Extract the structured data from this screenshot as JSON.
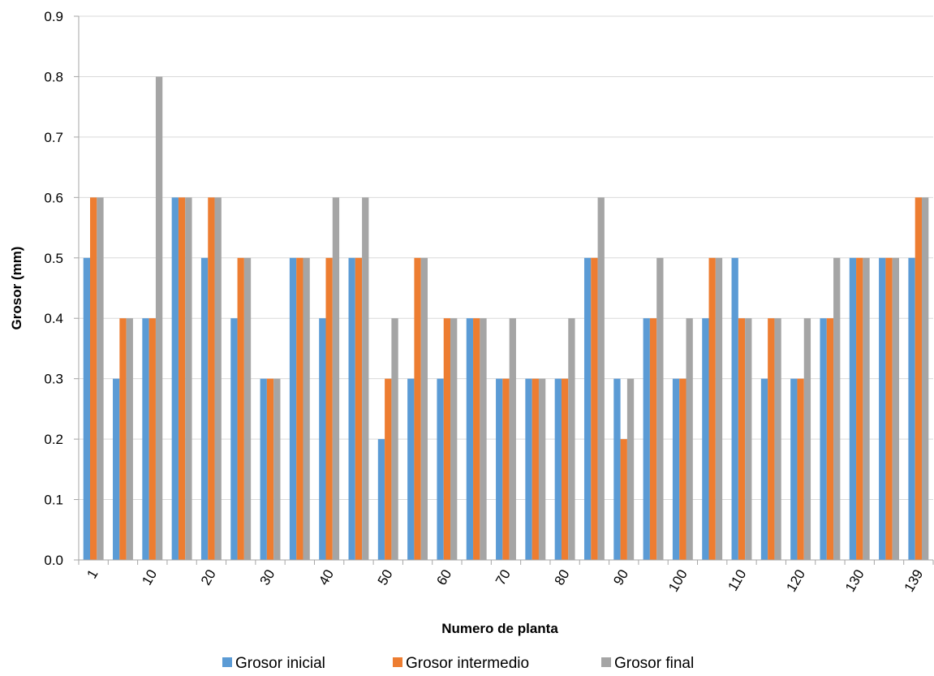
{
  "chart_data": {
    "type": "bar",
    "xlabel": "Numero de planta",
    "ylabel": "Grosor (mm)",
    "ylim": [
      0,
      0.9
    ],
    "yticks": [
      "0.0",
      "0.1",
      "0.2",
      "0.3",
      "0.4",
      "0.5",
      "0.6",
      "0.7",
      "0.8",
      "0.9"
    ],
    "grid": true,
    "legend_position": "bottom",
    "tick_labels": [
      "1",
      "",
      "10",
      "",
      "20",
      "",
      "30",
      "",
      "40",
      "",
      "50",
      "",
      "60",
      "",
      "70",
      "",
      "80",
      "",
      "90",
      "",
      "100",
      "",
      "110",
      "",
      "120",
      "",
      "130",
      "",
      "139"
    ],
    "series": [
      {
        "name": "Grosor inicial",
        "color": "#5b9bd5",
        "values": [
          0.5,
          0.3,
          0.4,
          0.6,
          0.5,
          0.4,
          0.3,
          0.5,
          0.4,
          0.5,
          0.2,
          0.3,
          0.3,
          0.4,
          0.3,
          0.3,
          0.3,
          0.5,
          0.3,
          0.4,
          0.3,
          0.4,
          0.5,
          0.3,
          0.3,
          0.4,
          0.5,
          0.5,
          0.5
        ]
      },
      {
        "name": "Grosor intermedio",
        "color": "#ed7d31",
        "values": [
          0.6,
          0.4,
          0.4,
          0.6,
          0.6,
          0.5,
          0.3,
          0.5,
          0.5,
          0.5,
          0.3,
          0.5,
          0.4,
          0.4,
          0.3,
          0.3,
          0.3,
          0.5,
          0.2,
          0.4,
          0.3,
          0.5,
          0.4,
          0.4,
          0.3,
          0.4,
          0.5,
          0.5,
          0.6
        ]
      },
      {
        "name": "Grosor final",
        "color": "#a5a5a5",
        "values": [
          0.6,
          0.4,
          0.8,
          0.6,
          0.6,
          0.5,
          0.3,
          0.5,
          0.6,
          0.6,
          0.4,
          0.5,
          0.4,
          0.4,
          0.4,
          0.3,
          0.4,
          0.6,
          0.3,
          0.5,
          0.4,
          0.5,
          0.4,
          0.4,
          0.4,
          0.5,
          0.5,
          0.5,
          0.6
        ]
      }
    ]
  }
}
